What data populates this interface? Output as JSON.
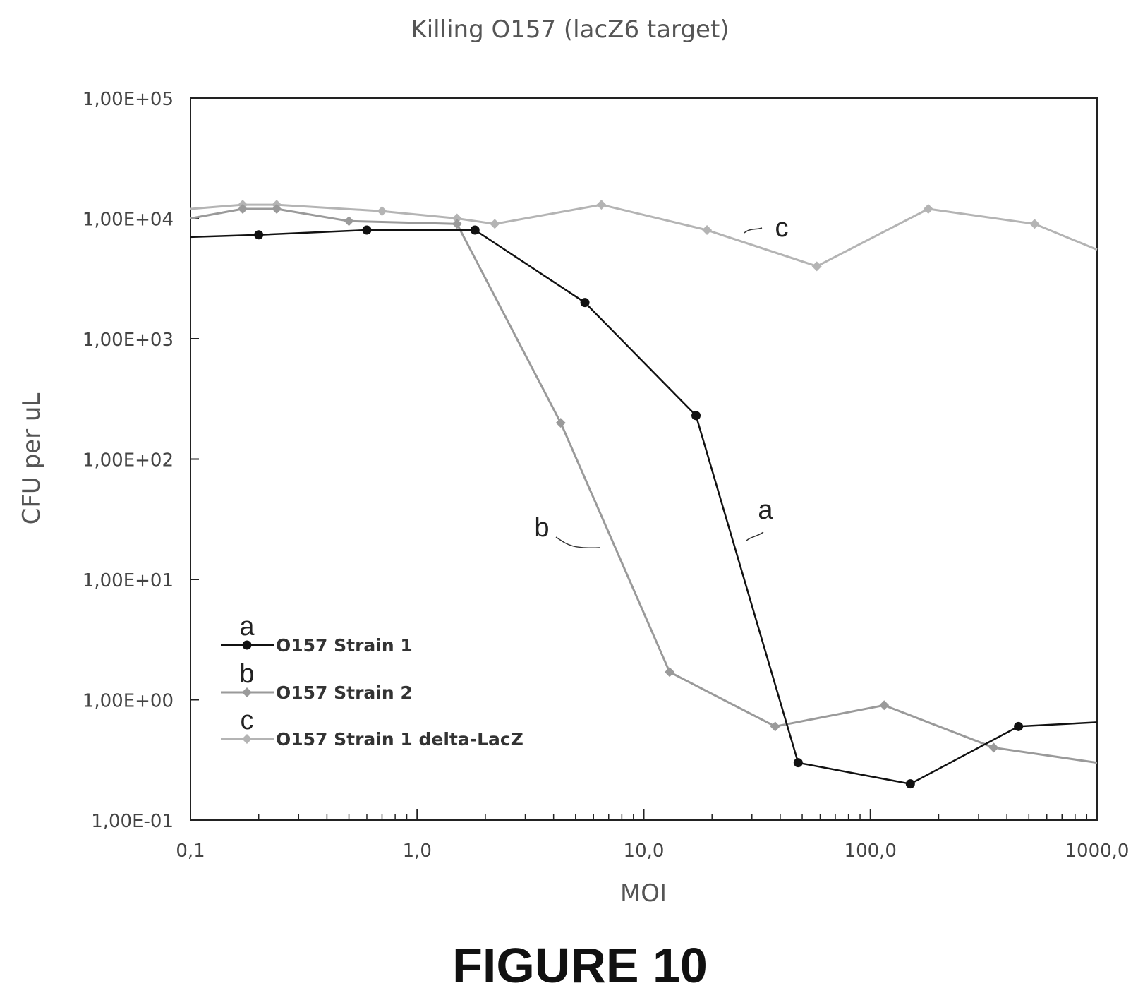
{
  "chart_data": {
    "type": "line",
    "title": "Killing O157 (lacZ6 target)",
    "xlabel": "MOI",
    "ylabel": "CFU per uL",
    "x_scale": "log",
    "y_scale": "log",
    "xlim": [
      0.1,
      1000
    ],
    "ylim": [
      0.1,
      100000
    ],
    "x_ticks": [
      0.1,
      1,
      10,
      100,
      1000
    ],
    "x_tick_labels": [
      "0,1",
      "1,0",
      "10,0",
      "100,0",
      "1000,0"
    ],
    "y_ticks": [
      0.1,
      1,
      10,
      100,
      1000,
      10000,
      100000
    ],
    "y_tick_labels": [
      "1,00E-01",
      "1,00E+00",
      "1,00E+01",
      "1,00E+02",
      "1,00E+03",
      "1,00E+04",
      "1,00E+05"
    ],
    "grid": false,
    "legend_position": "bottom-left",
    "series": [
      {
        "name": "O157 Strain 1",
        "letter": "a",
        "color": "#111111",
        "points": [
          [
            0.1,
            7000
          ],
          [
            0.2,
            7300
          ],
          [
            0.6,
            8000
          ],
          [
            1.8,
            8000
          ],
          [
            5.5,
            2000
          ],
          [
            17,
            230
          ],
          [
            48,
            0.3
          ],
          [
            150,
            0.2
          ],
          [
            450,
            0.6
          ],
          [
            1000,
            0.65
          ]
        ]
      },
      {
        "name": "O157 Strain 2",
        "letter": "b",
        "color": "#9a9a9a",
        "points": [
          [
            0.1,
            10000
          ],
          [
            0.17,
            12000
          ],
          [
            0.24,
            12000
          ],
          [
            0.5,
            9500
          ],
          [
            1.5,
            9000
          ],
          [
            4.3,
            200
          ],
          [
            13,
            1.7
          ],
          [
            38,
            0.6
          ],
          [
            115,
            0.9
          ],
          [
            350,
            0.4
          ],
          [
            1000,
            0.3
          ]
        ]
      },
      {
        "name": "O157 Strain 1 delta-LacZ",
        "letter": "c",
        "color": "#b4b4b4",
        "points": [
          [
            0.1,
            12000
          ],
          [
            0.17,
            13000
          ],
          [
            0.24,
            13000
          ],
          [
            0.7,
            11500
          ],
          [
            1.5,
            10000
          ],
          [
            2.2,
            9000
          ],
          [
            6.5,
            13000
          ],
          [
            19,
            8000
          ],
          [
            58,
            4000
          ],
          [
            180,
            12000
          ],
          [
            530,
            9000
          ],
          [
            1000,
            5500
          ]
        ]
      }
    ],
    "curve_labels": [
      "a",
      "b",
      "c"
    ]
  },
  "figure_caption": "FIGURE 10"
}
